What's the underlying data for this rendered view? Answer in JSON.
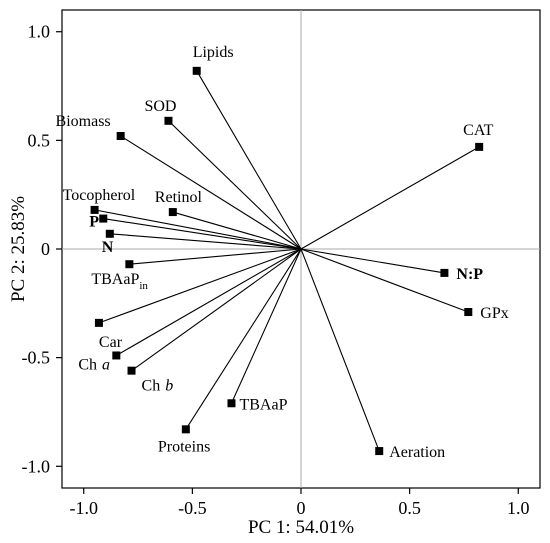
{
  "chart_data": {
    "type": "scatter",
    "subtype": "pca-biplot",
    "xlabel": "PC 1: 54.01%",
    "ylabel": "PC 2: 25.83%",
    "xlim": [
      -1.1,
      1.1
    ],
    "ylim": [
      -1.1,
      1.1
    ],
    "xticks": [
      "-1.0",
      "-0.5",
      "0",
      "0.5",
      "1.0"
    ],
    "yticks": [
      "1.0",
      "0.5",
      "0",
      "-0.5",
      "-1.0"
    ],
    "xtick_values": [
      -1.0,
      -0.5,
      0,
      0.5,
      1.0
    ],
    "ytick_values": [
      1.0,
      0.5,
      0,
      -0.5,
      -1.0
    ],
    "grid": false,
    "zero_lines": true,
    "vectors": [
      {
        "label": "Lipids",
        "x": -0.48,
        "y": 0.82
      },
      {
        "label": "SOD",
        "x": -0.61,
        "y": 0.59
      },
      {
        "label": "Biomass",
        "x": -0.83,
        "y": 0.52
      },
      {
        "label": "CAT",
        "x": 0.82,
        "y": 0.47
      },
      {
        "label": "Tocopherol",
        "x": -0.95,
        "y": 0.18
      },
      {
        "label": "Retinol",
        "x": -0.59,
        "y": 0.17
      },
      {
        "label": "P",
        "x": -0.91,
        "y": 0.14,
        "bold": true
      },
      {
        "label": "N",
        "x": -0.88,
        "y": 0.07,
        "bold": true
      },
      {
        "label": "TBAaP",
        "sub": "in",
        "x": -0.79,
        "y": -0.07
      },
      {
        "label": "N:P",
        "x": 0.66,
        "y": -0.11,
        "bold": true
      },
      {
        "label": "GPx",
        "x": 0.77,
        "y": -0.29
      },
      {
        "label": "Car",
        "x": -0.93,
        "y": -0.34
      },
      {
        "label": "Ch",
        "italic_suffix": "a",
        "x": -0.85,
        "y": -0.49
      },
      {
        "label": "Ch",
        "italic_suffix": "b",
        "x": -0.78,
        "y": -0.56
      },
      {
        "label": "TBAaP",
        "x": -0.32,
        "y": -0.71
      },
      {
        "label": "Proteins",
        "x": -0.53,
        "y": -0.83
      },
      {
        "label": "Aeration",
        "x": 0.36,
        "y": -0.93
      }
    ]
  }
}
